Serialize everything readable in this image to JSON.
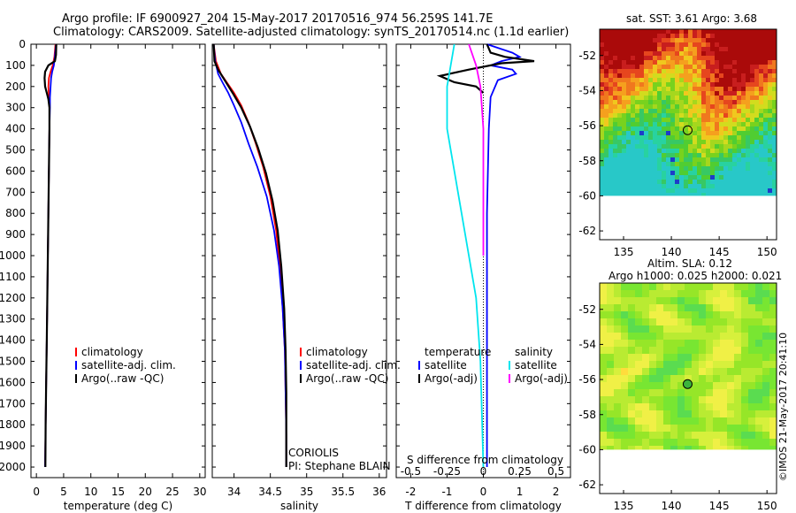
{
  "header": {
    "line1": "Argo profile: IF 6900927_204 15-May-2017 20170516_974 56.259S 141.7E",
    "line2": "Climatology: CARS2009. Satellite-adjusted climatology: synTS_20170514.nc (1.1d earlier)"
  },
  "colors": {
    "climatology": "#ff0000",
    "satellite": "#0000ff",
    "argo": "#000000",
    "sal_satellite": "#00e5ee",
    "sal_argo": "#ff00ff"
  },
  "chart_data": [
    {
      "type": "line",
      "xlabel": "temperature (deg C)",
      "xlim": [
        -1,
        31
      ],
      "ylim": [
        2050,
        0
      ],
      "xticks": [
        0,
        5,
        10,
        15,
        20,
        25,
        30
      ],
      "yticks": [
        0,
        100,
        200,
        300,
        400,
        500,
        600,
        700,
        800,
        900,
        1000,
        1100,
        1200,
        1300,
        1400,
        1500,
        1600,
        1700,
        1800,
        1900,
        2000
      ],
      "legend": [
        "climatology",
        "satellite-adj. clim.",
        "Argo(..raw -QC)"
      ],
      "series": [
        {
          "name": "climatology",
          "color": "#ff0000",
          "points": [
            [
              3.5,
              0
            ],
            [
              3.3,
              60
            ],
            [
              3.0,
              100
            ],
            [
              2.6,
              130
            ],
            [
              2.3,
              160
            ],
            [
              2.2,
              200
            ],
            [
              2.3,
              250
            ],
            [
              2.4,
              300
            ],
            [
              2.4,
              400
            ],
            [
              2.3,
              600
            ],
            [
              2.2,
              800
            ],
            [
              2.1,
              1000
            ],
            [
              2.0,
              1200
            ],
            [
              1.9,
              1400
            ],
            [
              1.8,
              1600
            ],
            [
              1.7,
              1800
            ],
            [
              1.6,
              2000
            ]
          ]
        },
        {
          "name": "satellite-adj. clim.",
          "color": "#0000ff",
          "points": [
            [
              3.6,
              0
            ],
            [
              3.4,
              60
            ],
            [
              3.2,
              100
            ],
            [
              2.9,
              130
            ],
            [
              2.7,
              160
            ],
            [
              2.6,
              200
            ],
            [
              2.5,
              250
            ],
            [
              2.5,
              300
            ],
            [
              2.4,
              400
            ],
            [
              2.3,
              600
            ],
            [
              2.2,
              800
            ],
            [
              2.1,
              1000
            ],
            [
              2.0,
              1200
            ],
            [
              1.9,
              1400
            ],
            [
              1.8,
              1600
            ],
            [
              1.7,
              1800
            ],
            [
              1.6,
              2000
            ]
          ]
        },
        {
          "name": "Argo(..raw -QC)",
          "color": "#000000",
          "points": [
            [
              3.65,
              0
            ],
            [
              3.6,
              50
            ],
            [
              3.4,
              80
            ],
            [
              2.2,
              100
            ],
            [
              1.6,
              130
            ],
            [
              1.5,
              160
            ],
            [
              1.6,
              200
            ],
            [
              1.9,
              230
            ],
            [
              2.2,
              260
            ],
            [
              2.4,
              300
            ],
            [
              2.4,
              400
            ],
            [
              2.3,
              600
            ],
            [
              2.2,
              800
            ],
            [
              2.1,
              1000
            ],
            [
              2.0,
              1200
            ],
            [
              1.9,
              1400
            ],
            [
              1.8,
              1600
            ],
            [
              1.7,
              1800
            ],
            [
              1.65,
              2000
            ]
          ]
        }
      ]
    },
    {
      "type": "line",
      "xlabel": "salinity",
      "xlim": [
        33.7,
        36.1
      ],
      "ylim": [
        2050,
        0
      ],
      "xticks": [
        34,
        34.5,
        35,
        35.5,
        36
      ],
      "legend": [
        "climatology",
        "satellite-adj. clim.",
        "Argo(..raw -QC)"
      ],
      "annotations": [
        "CORIOLIS",
        "PI: Stephane BLAIN"
      ],
      "series": [
        {
          "name": "climatology",
          "color": "#ff0000",
          "points": [
            [
              33.72,
              0
            ],
            [
              33.75,
              80
            ],
            [
              33.82,
              140
            ],
            [
              33.9,
              180
            ],
            [
              34.0,
              230
            ],
            [
              34.1,
              290
            ],
            [
              34.2,
              370
            ],
            [
              34.3,
              470
            ],
            [
              34.4,
              580
            ],
            [
              34.5,
              720
            ],
            [
              34.58,
              880
            ],
            [
              34.63,
              1050
            ],
            [
              34.67,
              1250
            ],
            [
              34.7,
              1450
            ],
            [
              34.71,
              1650
            ],
            [
              34.72,
              1850
            ],
            [
              34.72,
              2000
            ]
          ]
        },
        {
          "name": "satellite-adj. clim.",
          "color": "#0000ff",
          "points": [
            [
              33.72,
              0
            ],
            [
              33.74,
              80
            ],
            [
              33.78,
              140
            ],
            [
              33.84,
              180
            ],
            [
              33.92,
              230
            ],
            [
              34.0,
              290
            ],
            [
              34.1,
              370
            ],
            [
              34.2,
              470
            ],
            [
              34.32,
              580
            ],
            [
              34.45,
              720
            ],
            [
              34.55,
              880
            ],
            [
              34.62,
              1050
            ],
            [
              34.67,
              1250
            ],
            [
              34.7,
              1450
            ],
            [
              34.71,
              1650
            ],
            [
              34.72,
              1850
            ],
            [
              34.72,
              2000
            ]
          ]
        },
        {
          "name": "Argo(..raw -QC)",
          "color": "#000000",
          "points": [
            [
              33.72,
              0
            ],
            [
              33.73,
              80
            ],
            [
              33.78,
              120
            ],
            [
              33.87,
              170
            ],
            [
              33.98,
              230
            ],
            [
              34.1,
              300
            ],
            [
              34.22,
              390
            ],
            [
              34.33,
              490
            ],
            [
              34.44,
              610
            ],
            [
              34.53,
              740
            ],
            [
              34.6,
              880
            ],
            [
              34.65,
              1050
            ],
            [
              34.69,
              1250
            ],
            [
              34.71,
              1450
            ],
            [
              34.72,
              1650
            ],
            [
              34.72,
              1850
            ],
            [
              34.72,
              2000
            ]
          ]
        }
      ]
    },
    {
      "type": "line",
      "xlabel": "T difference from climatology",
      "xlabel2": "S difference from climatology",
      "xlim": [
        -2.4,
        2.4
      ],
      "ylim": [
        2050,
        0
      ],
      "xticks": [
        -2,
        -1,
        0,
        1,
        2
      ],
      "xticks2": [
        "-0.5",
        "-0.25",
        "0",
        "0.25",
        "0.5"
      ],
      "legend": {
        "temperature_title": "temperature",
        "salinity_title": "salinity",
        "t_sat": "satellite",
        "t_argo": "Argo(-adj)",
        "s_sat": "satellite",
        "s_argo": "Argo(-adj)"
      },
      "series": [
        {
          "name": "temperature satellite",
          "color": "#0000ff",
          "points": [
            [
              0.1,
              0
            ],
            [
              0.8,
              40
            ],
            [
              1.0,
              60
            ],
            [
              0.5,
              80
            ],
            [
              0.2,
              100
            ],
            [
              0.8,
              120
            ],
            [
              0.9,
              140
            ],
            [
              0.4,
              170
            ],
            [
              0.2,
              250
            ],
            [
              0.15,
              400
            ],
            [
              0.1,
              800
            ],
            [
              0.1,
              1200
            ],
            [
              0.1,
              1600
            ],
            [
              0.1,
              2000
            ]
          ]
        },
        {
          "name": "temperature Argo(-adj)",
          "color": "#000000",
          "points": [
            [
              0.1,
              0
            ],
            [
              0.2,
              40
            ],
            [
              0.6,
              60
            ],
            [
              1.4,
              80
            ],
            [
              0.5,
              90
            ],
            [
              -0.4,
              120
            ],
            [
              -1.2,
              150
            ],
            [
              -0.8,
              180
            ],
            [
              -0.2,
              200
            ],
            [
              0.0,
              230
            ]
          ]
        },
        {
          "name": "salinity satellite",
          "color": "#00e5ee",
          "points": [
            [
              -0.2,
              0
            ],
            [
              -0.25,
              200
            ],
            [
              -0.25,
              400
            ],
            [
              -0.2,
              600
            ],
            [
              -0.15,
              800
            ],
            [
              -0.1,
              1000
            ],
            [
              -0.05,
              1200
            ],
            [
              -0.02,
              1500
            ],
            [
              0.0,
              2000
            ]
          ]
        },
        {
          "name": "salinity Argo(-adj)",
          "color": "#ff00ff",
          "points": [
            [
              -0.1,
              0
            ],
            [
              -0.05,
              100
            ],
            [
              -0.02,
              200
            ],
            [
              0.0,
              400
            ],
            [
              0.0,
              1000
            ]
          ]
        }
      ]
    },
    {
      "type": "heatmap",
      "title": "sat. SST: 3.61  Argo: 3.68",
      "xlim": [
        132.5,
        151
      ],
      "ylim": [
        -62.5,
        -50.5
      ],
      "xticks": [
        135,
        140,
        145,
        150
      ],
      "yticks": [
        -52,
        -54,
        -56,
        -58,
        -60,
        -62
      ],
      "marker": [
        141.7,
        -56.259
      ]
    },
    {
      "type": "heatmap",
      "title": "Altim. SLA: 0.12",
      "subtitle": "Argo h1000: 0.025  h2000: 0.021",
      "xlim": [
        132.5,
        151
      ],
      "ylim": [
        -62.5,
        -50.5
      ],
      "xticks": [
        135,
        140,
        145,
        150
      ],
      "yticks": [
        -52,
        -54,
        -56,
        -58,
        -60,
        -62
      ],
      "marker": [
        141.7,
        -56.259
      ]
    }
  ],
  "footer": {
    "credit": "©IMOS 21-May-2017 20:41:10"
  }
}
